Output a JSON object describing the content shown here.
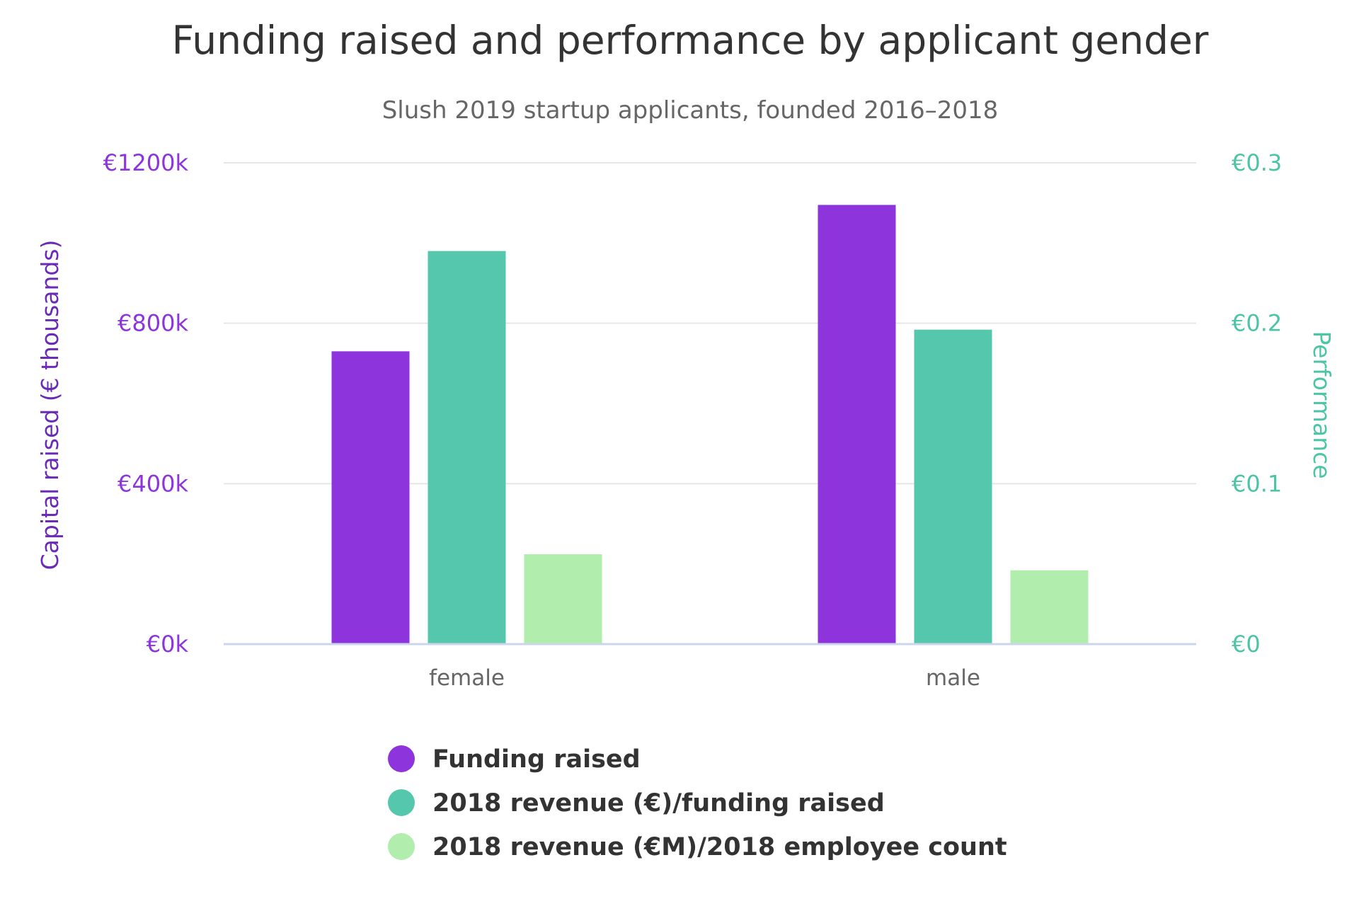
{
  "chart_data": {
    "type": "bar",
    "title": "Funding raised and performance by applicant gender",
    "subtitle": "Slush 2019 startup applicants, founded 2016–2018",
    "categories": [
      "female",
      "male"
    ],
    "left_axis": {
      "label": "Capital raised (€ thousands)",
      "ticks": [
        {
          "value": 0,
          "label": "€0k"
        },
        {
          "value": 400,
          "label": "€400k"
        },
        {
          "value": 800,
          "label": "€800k"
        },
        {
          "value": 1200,
          "label": "€1200k"
        }
      ],
      "ylim": [
        0,
        1200
      ],
      "color": "#8e34dd"
    },
    "right_axis": {
      "label": "Performance",
      "ticks": [
        {
          "value": 0,
          "label": "€0"
        },
        {
          "value": 0.1,
          "label": "€0.1"
        },
        {
          "value": 0.2,
          "label": "€0.2"
        },
        {
          "value": 0.3,
          "label": "€0.3"
        }
      ],
      "ylim": [
        0,
        0.3
      ],
      "color": "#4cc4a6"
    },
    "series": [
      {
        "name": "Funding raised",
        "axis": "left",
        "color": "#8e34dd",
        "values": [
          730,
          1095
        ]
      },
      {
        "name": "2018 revenue (€)/funding raised",
        "axis": "right",
        "color": "#55c7ac",
        "values": [
          0.245,
          0.196
        ]
      },
      {
        "name": "2018 revenue (€M)/2018 employee count",
        "axis": "right",
        "color": "#b1edad",
        "values": [
          0.056,
          0.046
        ]
      }
    ],
    "grid": true,
    "legend": "bottom-center"
  }
}
